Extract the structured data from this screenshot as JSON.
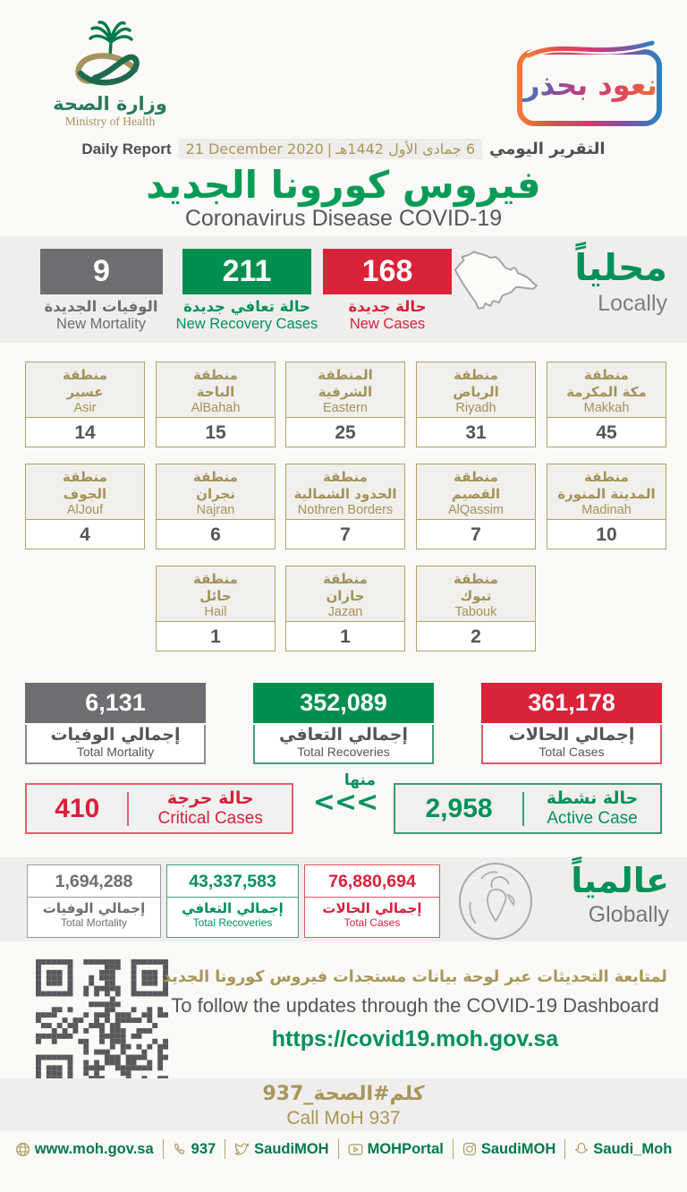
{
  "header": {
    "logo_ar": "وزارة الصحة",
    "logo_en": "Ministry of Health",
    "badge_text": "نعود بحذر",
    "report_label_en": "Daily Report",
    "report_date_gregorian": "21 December 2020",
    "report_date_separator": "|",
    "report_date_hijri": "6 جمادى الأول 1442هـ",
    "report_label_ar": "التقرير اليومي",
    "title_ar": "فيروس كورونا الجديد",
    "title_en": "Coronavirus Disease COVID-19"
  },
  "colors": {
    "green": "#00915a",
    "red": "#d7203c",
    "gray": "#6d6e71",
    "gold": "#a8965a"
  },
  "locally": {
    "heading_ar": "محلياً",
    "heading_en": "Locally",
    "stats": [
      {
        "value": "9",
        "label_ar": "الوفيات الجديدة",
        "label_en": "New Mortality"
      },
      {
        "value": "211",
        "label_ar": "حالة تعافي جديدة",
        "label_en": "New Recovery Cases"
      },
      {
        "value": "168",
        "label_ar": "حالة جديدة",
        "label_en": "New Cases"
      }
    ]
  },
  "regions": [
    {
      "ar1": "منطقة",
      "ar2": "عسير",
      "en": "Asir",
      "value": "14"
    },
    {
      "ar1": "منطقة",
      "ar2": "الباحة",
      "en": "AlBahah",
      "value": "15"
    },
    {
      "ar1": "المنطقة",
      "ar2": "الشرقية",
      "en": "Eastern",
      "value": "25"
    },
    {
      "ar1": "منطقة",
      "ar2": "الرياض",
      "en": "Riyadh",
      "value": "31"
    },
    {
      "ar1": "منطقة",
      "ar2": "مكة المكرمة",
      "en": "Makkah",
      "value": "45"
    },
    {
      "ar1": "منطقة",
      "ar2": "الجوف",
      "en": "AlJouf",
      "value": "4"
    },
    {
      "ar1": "منطقة",
      "ar2": "نجران",
      "en": "Najran",
      "value": "6"
    },
    {
      "ar1": "منطقة",
      "ar2": "الحدود الشمالية",
      "en": "Nothren Borders",
      "value": "7"
    },
    {
      "ar1": "منطقة",
      "ar2": "القصيم",
      "en": "AlQassim",
      "value": "7"
    },
    {
      "ar1": "منطقة",
      "ar2": "المدينة المنورة",
      "en": "Madinah",
      "value": "10"
    },
    {
      "ar1": "منطقة",
      "ar2": "حائل",
      "en": "Hail",
      "value": "1"
    },
    {
      "ar1": "منطقة",
      "ar2": "جازان",
      "en": "Jazan",
      "value": "1"
    },
    {
      "ar1": "منطقة",
      "ar2": "تبوك",
      "en": "Tabouk",
      "value": "2"
    }
  ],
  "totals": [
    {
      "value": "6,131",
      "label_ar": "إجمالي الوفيات",
      "label_en": "Total Mortality"
    },
    {
      "value": "352,089",
      "label_ar": "إجمالي التعافي",
      "label_en": "Total Recoveries"
    },
    {
      "value": "361,178",
      "label_ar": "إجمالي الحالات",
      "label_en": "Total Cases"
    }
  ],
  "critical": {
    "value": "410",
    "label_ar": "حالة حرجة",
    "label_en": "Critical Cases"
  },
  "of_which": {
    "label_ar": "منها",
    "chevrons": "<<<"
  },
  "active": {
    "value": "2,958",
    "label_ar": "حالة نشطة",
    "label_en": "Active Case"
  },
  "globally": {
    "heading_ar": "عالمياً",
    "heading_en": "Globally",
    "stats": [
      {
        "value": "1,694,288",
        "label_ar": "إجمالي الوفيات",
        "label_en": "Total Mortality"
      },
      {
        "value": "43,337,583",
        "label_ar": "إجمالي التعافي",
        "label_en": "Total Recoveries"
      },
      {
        "value": "76,880,694",
        "label_ar": "إجمالي الحالات",
        "label_en": "Total Cases"
      }
    ]
  },
  "dashboard": {
    "line_ar": "لمتابعة التحديثات عبر لوحة بيانات مستجدات فيروس كورونا الجديد",
    "line_en": "To follow the updates through the COVID-19 Dashboard",
    "url": "https://covid19.moh.gov.sa"
  },
  "call": {
    "line_ar": "كلم#الصحة_937",
    "line_en": "Call MoH 937"
  },
  "footer": {
    "items": [
      {
        "icon": "globe-icon",
        "label": "www.moh.gov.sa"
      },
      {
        "icon": "phone-icon",
        "label": "937"
      },
      {
        "icon": "twitter-icon",
        "label": "SaudiMOH"
      },
      {
        "icon": "youtube-icon",
        "label": "MOHPortal"
      },
      {
        "icon": "instagram-icon",
        "label": "SaudiMOH"
      },
      {
        "icon": "snapchat-icon",
        "label": "Saudi_Moh"
      }
    ]
  }
}
